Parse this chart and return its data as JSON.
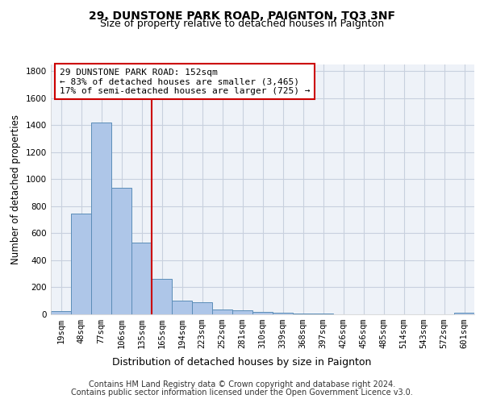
{
  "title1": "29, DUNSTONE PARK ROAD, PAIGNTON, TQ3 3NF",
  "title2": "Size of property relative to detached houses in Paignton",
  "xlabel": "Distribution of detached houses by size in Paignton",
  "ylabel": "Number of detached properties",
  "categories": [
    "19sqm",
    "48sqm",
    "77sqm",
    "106sqm",
    "135sqm",
    "165sqm",
    "194sqm",
    "223sqm",
    "252sqm",
    "281sqm",
    "310sqm",
    "339sqm",
    "368sqm",
    "397sqm",
    "426sqm",
    "456sqm",
    "485sqm",
    "514sqm",
    "543sqm",
    "572sqm",
    "601sqm"
  ],
  "values": [
    22,
    745,
    1420,
    937,
    530,
    265,
    103,
    90,
    38,
    28,
    17,
    10,
    8,
    4,
    2,
    1,
    1,
    0,
    0,
    0,
    13
  ],
  "bar_color": "#aec6e8",
  "bar_edge_color": "#5b8db8",
  "vline_x": 4.5,
  "vline_color": "#cc0000",
  "annotation_text": "29 DUNSTONE PARK ROAD: 152sqm\n← 83% of detached houses are smaller (3,465)\n17% of semi-detached houses are larger (725) →",
  "annotation_box_color": "#ffffff",
  "annotation_box_edge": "#cc0000",
  "ylim": [
    0,
    1850
  ],
  "yticks": [
    0,
    200,
    400,
    600,
    800,
    1000,
    1200,
    1400,
    1600,
    1800
  ],
  "footnote1": "Contains HM Land Registry data © Crown copyright and database right 2024.",
  "footnote2": "Contains public sector information licensed under the Open Government Licence v3.0.",
  "bg_color": "#eef2f8",
  "grid_color": "#c8d0de",
  "title1_fontsize": 10,
  "title2_fontsize": 9,
  "xlabel_fontsize": 9,
  "ylabel_fontsize": 8.5,
  "tick_fontsize": 7.5,
  "annotation_fontsize": 8,
  "footnote_fontsize": 7
}
